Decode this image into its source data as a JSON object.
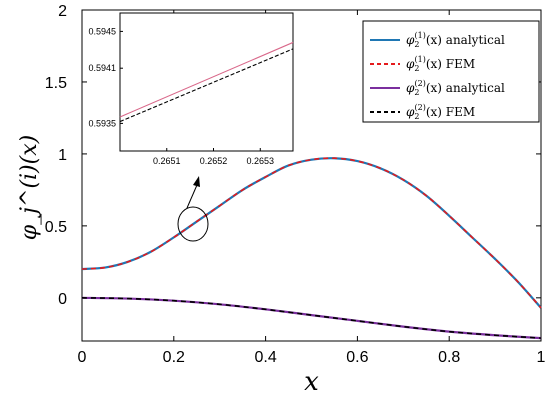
{
  "chart_data": {
    "type": "line",
    "main": {
      "xlabel": "x",
      "ylabel": "φ_j^(i)(x)",
      "xlim": [
        0,
        1
      ],
      "ylim": [
        -0.3,
        2
      ],
      "xticks": [
        "0",
        "0.2",
        "0.4",
        "0.6",
        "0.8",
        "1"
      ],
      "yticks": [
        "0",
        "0.5",
        "1",
        "1.5",
        "2"
      ],
      "series": [
        {
          "name": "φ2(1)(x) analytical",
          "color": "#1f77b4",
          "dash": "solid",
          "x": [
            0,
            0.05,
            0.1,
            0.15,
            0.2,
            0.25,
            0.3,
            0.35,
            0.4,
            0.45,
            0.5,
            0.55,
            0.6,
            0.65,
            0.7,
            0.75,
            0.8,
            0.85,
            0.9,
            0.95,
            1.0
          ],
          "y": [
            0.2,
            0.21,
            0.25,
            0.32,
            0.42,
            0.53,
            0.64,
            0.75,
            0.84,
            0.92,
            0.96,
            0.97,
            0.95,
            0.9,
            0.82,
            0.71,
            0.57,
            0.42,
            0.27,
            0.11,
            -0.07
          ]
        },
        {
          "name": "φ2(1)(x) FEM",
          "color": "#e41a1c",
          "dash": "dash",
          "x": [
            0,
            0.05,
            0.1,
            0.15,
            0.2,
            0.25,
            0.3,
            0.35,
            0.4,
            0.45,
            0.5,
            0.55,
            0.6,
            0.65,
            0.7,
            0.75,
            0.8,
            0.85,
            0.9,
            0.95,
            1.0
          ],
          "y": [
            0.2,
            0.21,
            0.25,
            0.32,
            0.42,
            0.53,
            0.64,
            0.75,
            0.84,
            0.92,
            0.96,
            0.97,
            0.95,
            0.9,
            0.82,
            0.71,
            0.57,
            0.42,
            0.27,
            0.11,
            -0.07
          ]
        },
        {
          "name": "φ2(2)(x) analytical",
          "color": "#7b2f9e",
          "dash": "solid",
          "x": [
            0,
            0.1,
            0.2,
            0.3,
            0.4,
            0.5,
            0.6,
            0.7,
            0.8,
            0.9,
            1.0
          ],
          "y": [
            0.0,
            -0.005,
            -0.02,
            -0.045,
            -0.08,
            -0.12,
            -0.16,
            -0.2,
            -0.235,
            -0.26,
            -0.28
          ]
        },
        {
          "name": "φ2(2)(x) FEM",
          "color": "#000000",
          "dash": "dash",
          "x": [
            0,
            0.1,
            0.2,
            0.3,
            0.4,
            0.5,
            0.6,
            0.7,
            0.8,
            0.9,
            1.0
          ],
          "y": [
            0.0,
            -0.005,
            -0.02,
            -0.045,
            -0.08,
            -0.12,
            -0.16,
            -0.2,
            -0.235,
            -0.26,
            -0.28
          ]
        }
      ],
      "legend_placement": "top-right"
    },
    "inset": {
      "xlim": [
        0.265,
        0.26537
      ],
      "ylim": [
        0.5932,
        0.5947
      ],
      "xticks": [
        "0.2651",
        "0.2652",
        "0.2653"
      ],
      "yticks": [
        "0.5935",
        "0.5941",
        "0.5945"
      ],
      "series": [
        {
          "name": "pink",
          "color": "#d9688a",
          "dash": "solid",
          "x": [
            0.265,
            0.26537
          ],
          "y": [
            0.59357,
            0.59438
          ]
        },
        {
          "name": "black",
          "color": "#000000",
          "dash": "dash",
          "x": [
            0.265,
            0.26537
          ],
          "y": [
            0.59352,
            0.59431
          ]
        }
      ]
    },
    "legend": {
      "entries": [
        {
          "sub": "2",
          "sup": "(1)",
          "tail": "(x) analytical",
          "color": "#1f77b4",
          "dash": "solid"
        },
        {
          "sub": "2",
          "sup": "(1)",
          "tail": "(x) FEM",
          "color": "#e41a1c",
          "dash": "dash"
        },
        {
          "sub": "2",
          "sup": "(2)",
          "tail": "(x) analytical",
          "color": "#7b2f9e",
          "dash": "solid"
        },
        {
          "sub": "2",
          "sup": "(2)",
          "tail": "(x) FEM",
          "color": "#000000",
          "dash": "dash"
        }
      ]
    }
  }
}
